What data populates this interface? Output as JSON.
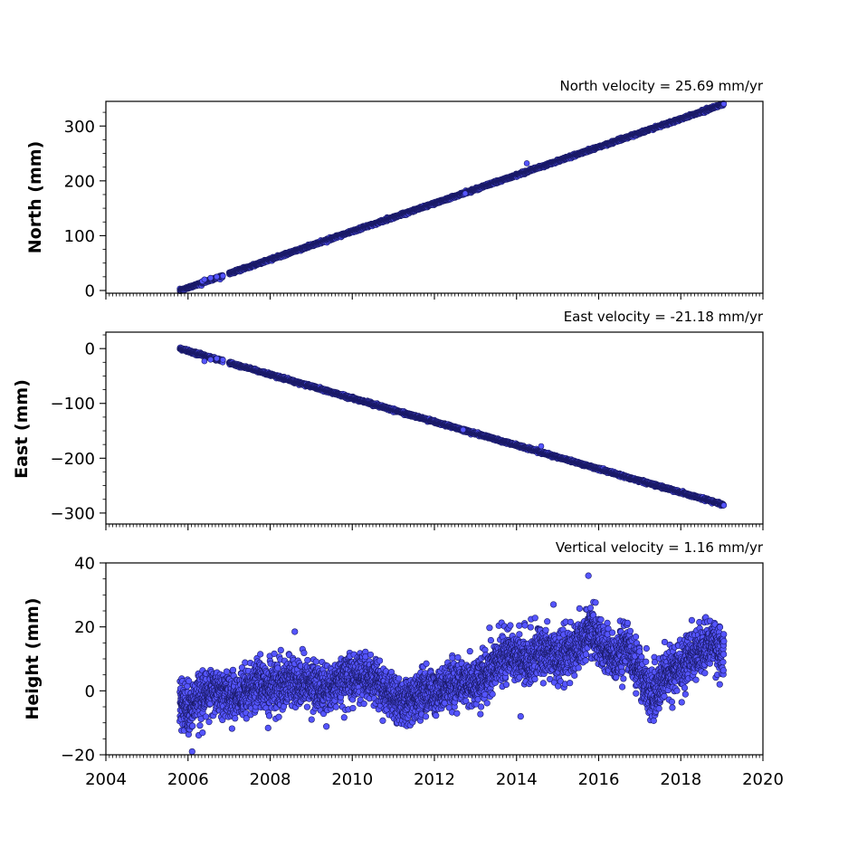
{
  "colors": {
    "marker_fill": "#5555ff",
    "marker_edge": "#1a1a66",
    "axes": "#000000"
  },
  "chart_data": [
    {
      "type": "scatter",
      "annotation": "North velocity = 25.69 mm/yr",
      "ylabel": "North (mm)",
      "xlim": [
        2004,
        2020
      ],
      "ylim": [
        -5,
        345
      ],
      "yticks": [
        0,
        100,
        200,
        300
      ],
      "ytick_labels": [
        "0",
        "100",
        "200",
        "300"
      ],
      "xtick_labels": [],
      "trend": {
        "start": [
          2005.8,
          0
        ],
        "end": [
          2019.05,
          340
        ],
        "noise_mm": 1.2
      },
      "gaps": [
        [
          2006.85,
          2007.0
        ]
      ],
      "outliers": [
        [
          2014.25,
          232
        ],
        [
          2012.75,
          177
        ],
        [
          2006.7,
          25
        ],
        [
          2006.55,
          23
        ],
        [
          2006.35,
          17
        ],
        [
          2006.4,
          20
        ]
      ],
      "grid": false
    },
    {
      "type": "scatter",
      "annotation": "East velocity = -21.18 mm/yr",
      "ylabel": "East (mm)",
      "xlim": [
        2004,
        2020
      ],
      "ylim": [
        -320,
        30
      ],
      "yticks": [
        0,
        -100,
        -200,
        -300
      ],
      "ytick_labels": [
        "0",
        "−100",
        "−200",
        "−300"
      ],
      "xtick_labels": [],
      "trend": {
        "start": [
          2005.8,
          0
        ],
        "end": [
          2019.05,
          -285
        ],
        "noise_mm": 1.2
      },
      "gaps": [
        [
          2006.85,
          2007.0
        ]
      ],
      "outliers": [
        [
          2012.7,
          -148
        ],
        [
          2006.4,
          -23
        ],
        [
          2006.55,
          -20
        ],
        [
          2006.7,
          -18
        ],
        [
          2014.6,
          -178
        ]
      ],
      "grid": false
    },
    {
      "type": "scatter",
      "annotation": "Vertical velocity = 1.16 mm/yr",
      "ylabel": "Height (mm)",
      "xlim": [
        2004,
        2020
      ],
      "ylim": [
        -20,
        40
      ],
      "yticks": [
        -20,
        0,
        20,
        40
      ],
      "ytick_labels": [
        "−20",
        "0",
        "20",
        "40"
      ],
      "xtick_labels": [
        "2004",
        "2006",
        "2008",
        "2010",
        "2012",
        "2014",
        "2016",
        "2018",
        "2020"
      ],
      "xticks": [
        2004,
        2006,
        2008,
        2010,
        2012,
        2014,
        2016,
        2018,
        2020
      ],
      "baseline": [
        [
          2005.8,
          -3
        ],
        [
          2006.0,
          -5
        ],
        [
          2006.3,
          -2
        ],
        [
          2006.6,
          1
        ],
        [
          2006.9,
          -1
        ],
        [
          2007.2,
          -2
        ],
        [
          2007.6,
          2
        ],
        [
          2008.0,
          1
        ],
        [
          2008.5,
          3
        ],
        [
          2009.0,
          2
        ],
        [
          2009.4,
          0
        ],
        [
          2009.8,
          4
        ],
        [
          2010.2,
          5
        ],
        [
          2010.6,
          3
        ],
        [
          2011.0,
          -2
        ],
        [
          2011.3,
          -4
        ],
        [
          2011.7,
          -1
        ],
        [
          2012.0,
          0
        ],
        [
          2012.5,
          3
        ],
        [
          2013.0,
          2
        ],
        [
          2013.5,
          8
        ],
        [
          2013.8,
          12
        ],
        [
          2014.2,
          9
        ],
        [
          2014.6,
          13
        ],
        [
          2015.0,
          11
        ],
        [
          2015.4,
          12
        ],
        [
          2015.8,
          19
        ],
        [
          2016.1,
          14
        ],
        [
          2016.4,
          10
        ],
        [
          2016.7,
          14
        ],
        [
          2017.0,
          6
        ],
        [
          2017.3,
          -2
        ],
        [
          2017.6,
          5
        ],
        [
          2018.0,
          8
        ],
        [
          2018.4,
          12
        ],
        [
          2018.8,
          15
        ],
        [
          2019.05,
          12
        ]
      ],
      "noise_mm": 3.6,
      "outliers": [
        [
          2015.75,
          36
        ],
        [
          2006.1,
          -19
        ],
        [
          2008.6,
          18.5
        ],
        [
          2014.1,
          -8
        ],
        [
          2014.9,
          27
        ]
      ],
      "grid": false
    }
  ]
}
